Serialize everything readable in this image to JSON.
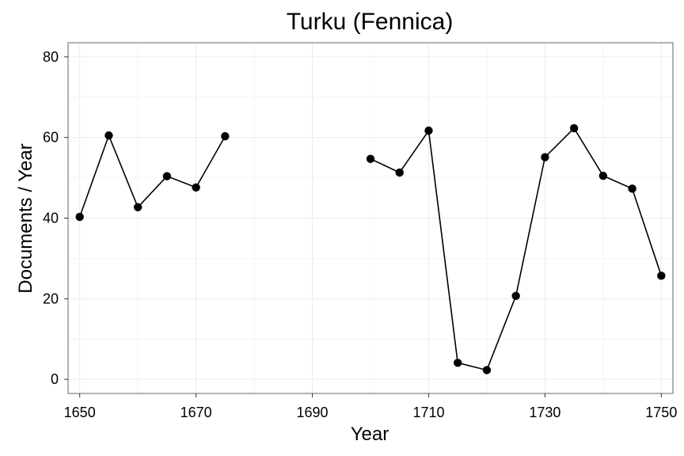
{
  "chart_data": {
    "type": "line",
    "title": "Turku (Fennica)",
    "xlabel": "Year",
    "ylabel": "Documents / Year",
    "xlim": [
      1648,
      1752
    ],
    "ylim": [
      -3.5,
      83.5
    ],
    "x_ticks": [
      1650,
      1670,
      1690,
      1710,
      1730,
      1750
    ],
    "y_ticks": [
      0,
      20,
      40,
      60,
      80
    ],
    "grid": true,
    "legend": "none",
    "series": [
      {
        "segments": [
          [
            {
              "x": 1650,
              "y": 40.3
            },
            {
              "x": 1655,
              "y": 60.5
            },
            {
              "x": 1660,
              "y": 42.7
            },
            {
              "x": 1665,
              "y": 50.4
            },
            {
              "x": 1670,
              "y": 47.6
            },
            {
              "x": 1675,
              "y": 60.3
            }
          ],
          [
            {
              "x": 1700,
              "y": 54.7
            },
            {
              "x": 1705,
              "y": 51.3
            },
            {
              "x": 1710,
              "y": 61.7
            },
            {
              "x": 1715,
              "y": 4.1
            },
            {
              "x": 1720,
              "y": 2.3
            },
            {
              "x": 1725,
              "y": 20.7
            },
            {
              "x": 1730,
              "y": 55.1
            },
            {
              "x": 1735,
              "y": 62.3
            },
            {
              "x": 1740,
              "y": 50.5
            },
            {
              "x": 1745,
              "y": 47.3
            },
            {
              "x": 1750,
              "y": 25.7
            }
          ]
        ]
      }
    ]
  }
}
